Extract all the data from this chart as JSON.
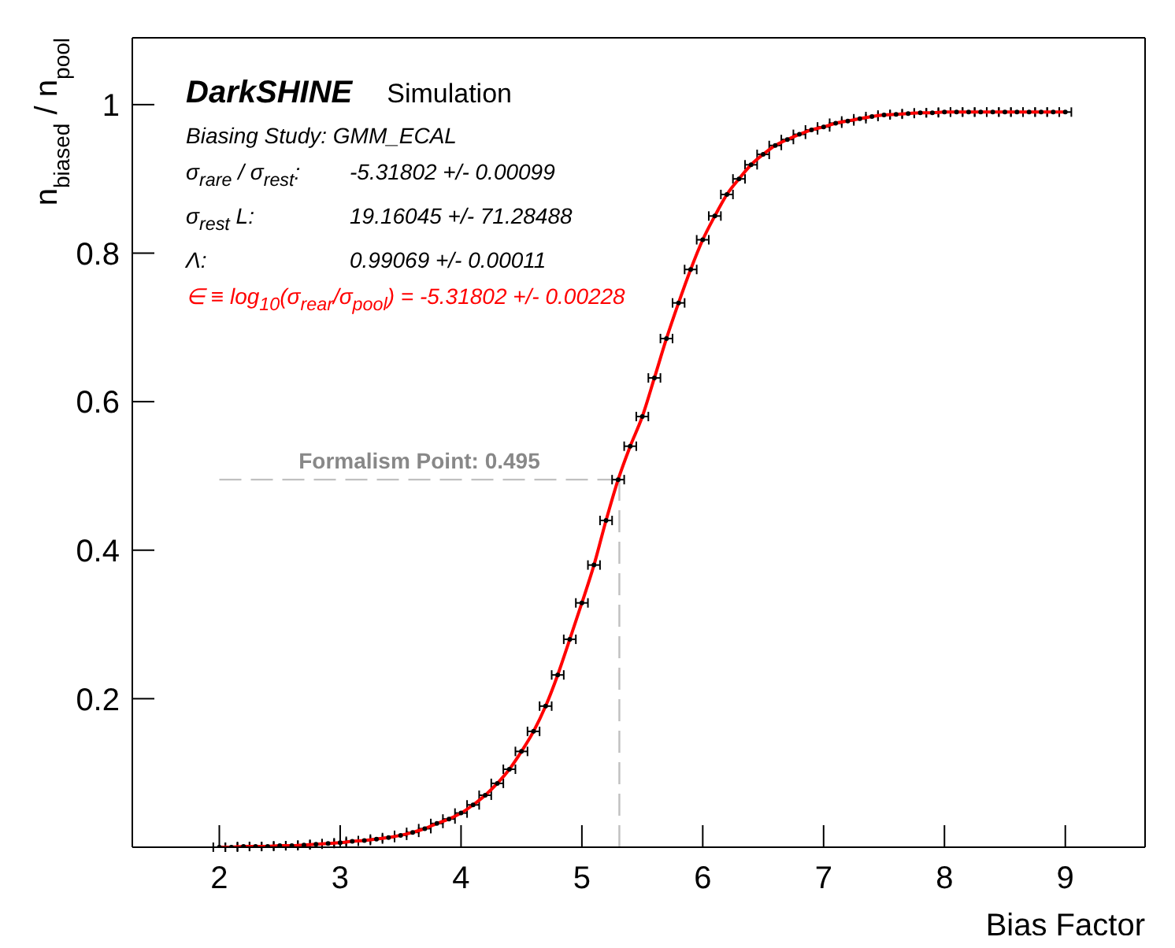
{
  "chart_data": {
    "type": "scatter",
    "xlabel": "Bias Factor",
    "ylabel": "n$_{biased}$ / n$_{pool}$",
    "x": [
      2.0,
      2.1,
      2.2,
      2.3,
      2.4,
      2.5,
      2.6,
      2.7,
      2.8,
      2.9,
      3.0,
      3.1,
      3.2,
      3.3,
      3.4,
      3.5,
      3.6,
      3.7,
      3.8,
      3.9,
      4.0,
      4.1,
      4.2,
      4.3,
      4.4,
      4.5,
      4.6,
      4.7,
      4.8,
      4.9,
      5.0,
      5.1,
      5.2,
      5.3,
      5.4,
      5.5,
      5.6,
      5.7,
      5.8,
      5.9,
      6.0,
      6.1,
      6.2,
      6.3,
      6.4,
      6.5,
      6.6,
      6.7,
      6.8,
      6.9,
      7.0,
      7.1,
      7.2,
      7.3,
      7.4,
      7.5,
      7.6,
      7.7,
      7.8,
      7.9,
      8.0,
      8.1,
      8.2,
      8.3,
      8.4,
      8.5,
      8.6,
      8.7,
      8.8,
      8.9,
      9.0
    ],
    "series": [
      {
        "color": "#000000",
        "marker": "circle",
        "values": [
          0.0,
          0.0,
          0.001,
          0.001,
          0.001,
          0.002,
          0.002,
          0.003,
          0.004,
          0.005,
          0.006,
          0.008,
          0.009,
          0.011,
          0.013,
          0.016,
          0.02,
          0.025,
          0.032,
          0.038,
          0.046,
          0.057,
          0.07,
          0.086,
          0.105,
          0.129,
          0.156,
          0.19,
          0.232,
          0.28,
          0.329,
          0.38,
          0.44,
          0.495,
          0.54,
          0.58,
          0.632,
          0.685,
          0.733,
          0.778,
          0.818,
          0.85,
          0.879,
          0.9,
          0.919,
          0.933,
          0.945,
          0.953,
          0.96,
          0.966,
          0.97,
          0.975,
          0.978,
          0.981,
          0.984,
          0.986,
          0.987,
          0.988,
          0.989,
          0.989,
          0.99,
          0.99,
          0.99,
          0.99,
          0.99,
          0.99,
          0.99,
          0.99,
          0.99,
          0.99,
          0.99
        ],
        "xerrors": [
          0.05,
          0.05,
          0.05,
          0.05,
          0.05,
          0.05,
          0.05,
          0.05,
          0.05,
          0.05,
          0.05,
          0.05,
          0.05,
          0.05,
          0.05,
          0.05,
          0.05,
          0.05,
          0.05,
          0.05,
          0.05,
          0.05,
          0.05,
          0.05,
          0.05,
          0.05,
          0.05,
          0.05,
          0.05,
          0.05,
          0.05,
          0.05,
          0.05,
          0.05,
          0.05,
          0.05,
          0.05,
          0.05,
          0.05,
          0.05,
          0.05,
          0.05,
          0.05,
          0.05,
          0.05,
          0.05,
          0.05,
          0.05,
          0.05,
          0.05,
          0.05,
          0.05,
          0.05,
          0.05,
          0.05,
          0.05,
          0.05,
          0.05,
          0.05,
          0.05,
          0.05,
          0.05,
          0.05,
          0.05,
          0.05,
          0.05,
          0.05,
          0.05,
          0.05,
          0.05,
          0.05
        ]
      },
      {
        "type": "line",
        "color": "#ff0000",
        "line_style": "solid",
        "values": [
          0.0,
          0.0,
          0.001,
          0.001,
          0.001,
          0.002,
          0.002,
          0.003,
          0.004,
          0.005,
          0.006,
          0.008,
          0.009,
          0.011,
          0.013,
          0.016,
          0.02,
          0.025,
          0.032,
          0.038,
          0.046,
          0.057,
          0.07,
          0.086,
          0.105,
          0.129,
          0.156,
          0.19,
          0.232,
          0.28,
          0.329,
          0.38,
          0.44,
          0.495,
          0.54,
          0.58,
          0.632,
          0.685,
          0.733,
          0.778,
          0.818,
          0.85,
          0.879,
          0.9,
          0.919,
          0.933,
          0.945,
          0.953,
          0.96,
          0.966,
          0.97,
          0.975,
          0.978,
          0.981,
          0.984,
          0.986,
          0.987,
          0.988,
          0.989,
          0.989,
          0.99,
          0.99,
          0.99,
          0.99,
          0.99,
          0.99,
          0.99,
          0.99,
          0.99,
          0.99,
          0.99
        ]
      }
    ],
    "xlim": [
      1.28,
      9.66
    ],
    "xticks": [
      2,
      3,
      4,
      5,
      6,
      7,
      8,
      9
    ],
    "ylim": [
      0,
      1.09
    ],
    "yticks": [
      0.2,
      0.4,
      0.6,
      0.8,
      1
    ],
    "grid": false,
    "legend": false,
    "ref_lines": [
      {
        "axis": "y",
        "value": 0.495,
        "label": "Formalism Point: 0.495",
        "color": "#c0c0c0",
        "line_style": "dashed"
      },
      {
        "axis": "x",
        "value": 5.31,
        "color": "#c0c0c0",
        "line_style": "dashed"
      }
    ],
    "annotations": [
      "DarkSHINE",
      "Simulation",
      "Biasing Study: GMM_ECAL",
      "σ$_{rare}$ / σ$_{rest}$:",
      "-5.31802 +/- 0.00099",
      "σ$_{rest}$ L:",
      "19.16045 +/- 71.28488",
      "Λ:",
      "0.99069 +/- 0.00011",
      "∈ ≡ log$_{10}$(σ$_{rear}$/σ$_{pool}$) = -5.31802 +/- 0.00228"
    ]
  }
}
